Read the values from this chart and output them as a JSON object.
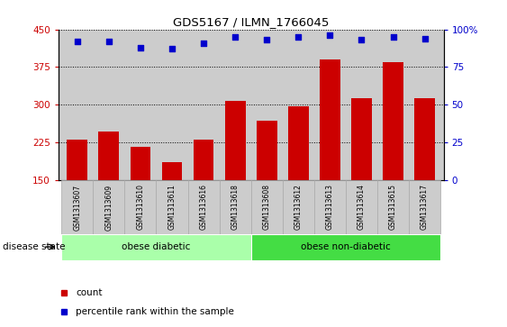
{
  "title": "GDS5167 / ILMN_1766045",
  "samples": [
    "GSM1313607",
    "GSM1313609",
    "GSM1313610",
    "GSM1313611",
    "GSM1313616",
    "GSM1313618",
    "GSM1313608",
    "GSM1313612",
    "GSM1313613",
    "GSM1313614",
    "GSM1313615",
    "GSM1313617"
  ],
  "counts": [
    230,
    247,
    215,
    185,
    230,
    307,
    268,
    296,
    390,
    313,
    385,
    312
  ],
  "percentiles": [
    92,
    92,
    88,
    87,
    91,
    95,
    93,
    95,
    96,
    93,
    95,
    94
  ],
  "groups": [
    {
      "label": "obese diabetic",
      "start": 0,
      "end": 6,
      "color": "#aaffaa"
    },
    {
      "label": "obese non-diabetic",
      "start": 6,
      "end": 12,
      "color": "#44dd44"
    }
  ],
  "bar_color": "#CC0000",
  "dot_color": "#0000CC",
  "ylim_left": [
    150,
    450
  ],
  "ylim_right": [
    0,
    100
  ],
  "yticks_left": [
    150,
    225,
    300,
    375,
    450
  ],
  "yticks_right": [
    0,
    25,
    50,
    75,
    100
  ],
  "bg_color": "#cccccc",
  "disease_state_label": "disease state",
  "legend_count": "count",
  "legend_percentile": "percentile rank within the sample",
  "n_obese_diabetic": 6,
  "n_total": 12
}
